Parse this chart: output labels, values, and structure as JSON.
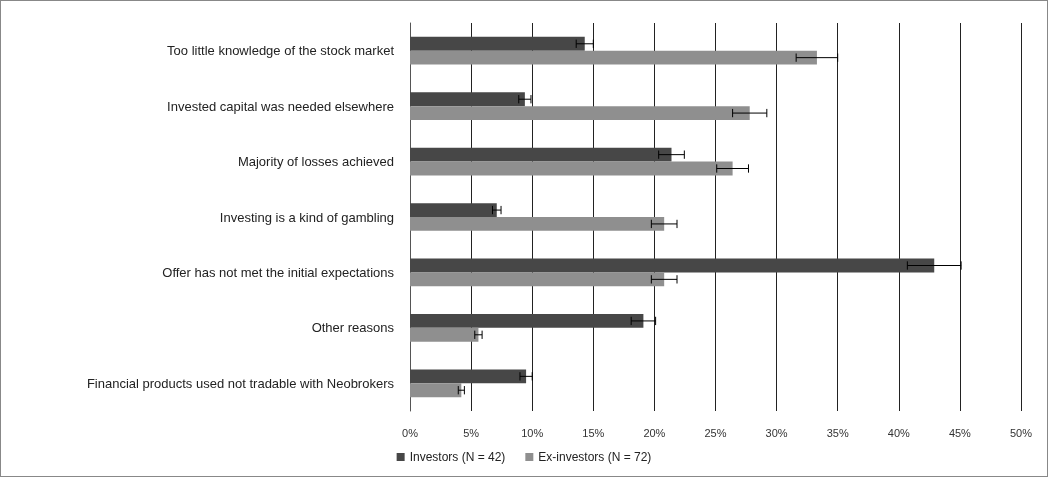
{
  "chart_data": {
    "type": "bar",
    "orientation": "horizontal",
    "categories": [
      "Too little knowledge of the stock market",
      "Invested capital was needed elsewhere",
      "Majority of losses achieved",
      "Investing is a kind of gambling",
      "Offer has not met the initial expectations",
      "Other reasons",
      "Financial products used not tradable with Neobrokers"
    ],
    "series": [
      {
        "name": "Investors (N = 42)",
        "color": "#474747",
        "values": [
          14.3,
          9.4,
          21.4,
          7.1,
          42.9,
          19.1,
          9.5
        ],
        "errors": [
          0.7,
          0.5,
          1.05,
          0.35,
          2.2,
          1.0,
          0.5
        ]
      },
      {
        "name": "Ex-investors (N = 72)",
        "color": "#8f8f8f",
        "values": [
          33.3,
          27.8,
          26.4,
          20.8,
          20.8,
          5.6,
          4.2
        ],
        "errors": [
          1.7,
          1.4,
          1.3,
          1.05,
          1.05,
          0.3,
          0.25
        ]
      }
    ],
    "xlim": [
      0,
      50
    ],
    "xticks": [
      {
        "value": 0,
        "label": "0%"
      },
      {
        "value": 5,
        "label": "5%"
      },
      {
        "value": 10,
        "label": "10%"
      },
      {
        "value": 15,
        "label": "15%"
      },
      {
        "value": 20,
        "label": "20%"
      },
      {
        "value": 25,
        "label": "25%"
      },
      {
        "value": 30,
        "label": "30%"
      },
      {
        "value": 35,
        "label": "35%"
      },
      {
        "value": 40,
        "label": "40%"
      },
      {
        "value": 45,
        "label": "45%"
      },
      {
        "value": 50,
        "label": "50%"
      }
    ],
    "grid": "x",
    "legend": "bottom"
  }
}
